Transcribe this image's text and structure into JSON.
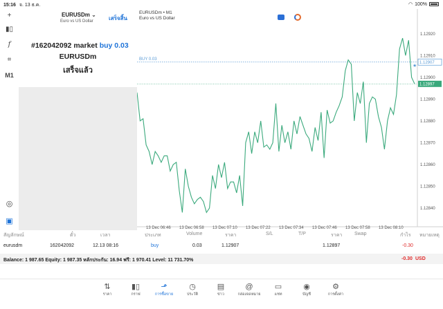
{
  "status_bar": {
    "time": "15:16",
    "date": "จ. 13 ธ.ค.",
    "battery": "100%"
  },
  "left_toolbar": {
    "timeframe": "M1"
  },
  "order_panel": {
    "symbol": "EURUSDm",
    "symbol_desc": "Euro vs US Dollar",
    "done_button": "เสร็จสิ้น",
    "order_id": "#162042092",
    "order_type": "market",
    "order_side": "buy 0.03",
    "order_symbol": "EURUSDm",
    "order_status": "เสร็จแล้ว"
  },
  "chart": {
    "symbol_line": "EURUSDm • M1",
    "description": "Euro vs US Dollar",
    "buy_label": "BUY 0.03",
    "buy_price_tag": "1.12907",
    "current_price_tag": "1.12897"
  },
  "chart_data": {
    "type": "line",
    "title": "EURUSDm • M1",
    "x_ticks": [
      "13 Dec 06:46",
      "13 Dec 06:58",
      "13 Dec 07:10",
      "13 Dec 07:22",
      "13 Dec 07:34",
      "13 Dec 07:46",
      "13 Dec 07:58",
      "13 Dec 08:10"
    ],
    "y_ticks": [
      "1.12920",
      "1.12910",
      "1.12900",
      "1.12890",
      "1.12880",
      "1.12870",
      "1.12860",
      "1.12850",
      "1.12840"
    ],
    "ylim": [
      1.12834,
      1.12925
    ],
    "series": [
      {
        "values": [
          1.12893,
          1.1288,
          1.12881,
          1.12869,
          1.12866,
          1.1286,
          1.12866,
          1.12864,
          1.12861,
          1.12864,
          1.12864,
          1.12857,
          1.1286,
          1.12861,
          1.12848,
          1.12838,
          1.12858,
          1.1285,
          1.12845,
          1.12842,
          1.12844,
          1.12845,
          1.12843,
          1.12838,
          1.1284,
          1.12855,
          1.12849,
          1.1286,
          1.12854,
          1.12861,
          1.12849,
          1.12852,
          1.12852,
          1.12847,
          1.12855,
          1.12841,
          1.1287,
          1.12875,
          1.12865,
          1.12875,
          1.1287,
          1.1288,
          1.12868,
          1.12869,
          1.12867,
          1.1287,
          1.12888,
          1.12866,
          1.12878,
          1.1287,
          1.12875,
          1.12867,
          1.1288,
          1.12874,
          1.12882,
          1.12878,
          1.12874,
          1.12872,
          1.12866,
          1.12877,
          1.12871,
          1.12884,
          1.12863,
          1.12885,
          1.12879,
          1.1288,
          1.12884,
          1.12887,
          1.12891,
          1.12903,
          1.12908,
          1.12906,
          1.1288,
          1.12893,
          1.12888,
          1.12898,
          1.1287,
          1.12888,
          1.12891,
          1.1289,
          1.12882,
          1.12877,
          1.12867,
          1.1288,
          1.12886,
          1.12883,
          1.12892,
          1.12913,
          1.12918,
          1.1291,
          1.12917,
          1.129,
          1.12897
        ]
      }
    ],
    "buy_level": 1.12907,
    "current_price": 1.12897
  },
  "table": {
    "headers": [
      "สัญลักษณ์",
      "ตั๋ว",
      "เวลา",
      "ประเภท",
      "Volume",
      "ราคา",
      "S/L",
      "T/P",
      "ราคา",
      "Swap",
      "กำไร",
      "หมายเหตุ"
    ],
    "row": {
      "symbol": "eurusdm",
      "ticket": "162042092",
      "time": "12.13 08:16",
      "type": "buy",
      "volume": "0.03",
      "open_price": "1.12907",
      "current_price": "1.12897",
      "profit": "-0.30"
    }
  },
  "balance": {
    "text": "Balance: 1 987.65 Equity: 1 987.35 หลักประกัน: 16.94 ฟรี: 1 970.41 Level: 11 731.70%",
    "total": "-0.30",
    "currency": "USD"
  },
  "nav": [
    {
      "label": "ราคา",
      "icon": "quotes-icon"
    },
    {
      "label": "กราฟ",
      "icon": "chart-icon"
    },
    {
      "label": "การซื้อขาย",
      "icon": "trade-icon"
    },
    {
      "label": "ประวัติ",
      "icon": "history-icon"
    },
    {
      "label": "ข่าว",
      "icon": "news-icon"
    },
    {
      "label": "กล่องจดหมาย",
      "icon": "mailbox-icon"
    },
    {
      "label": "แชท",
      "icon": "chat-icon"
    },
    {
      "label": "บัญชี",
      "icon": "account-icon"
    },
    {
      "label": "การตั้งค่า",
      "icon": "settings-icon"
    }
  ],
  "colors": {
    "accent": "#1e73d8",
    "line": "#3aa97c",
    "loss": "#e02a2a",
    "buy_line": "#5a9bd6"
  }
}
